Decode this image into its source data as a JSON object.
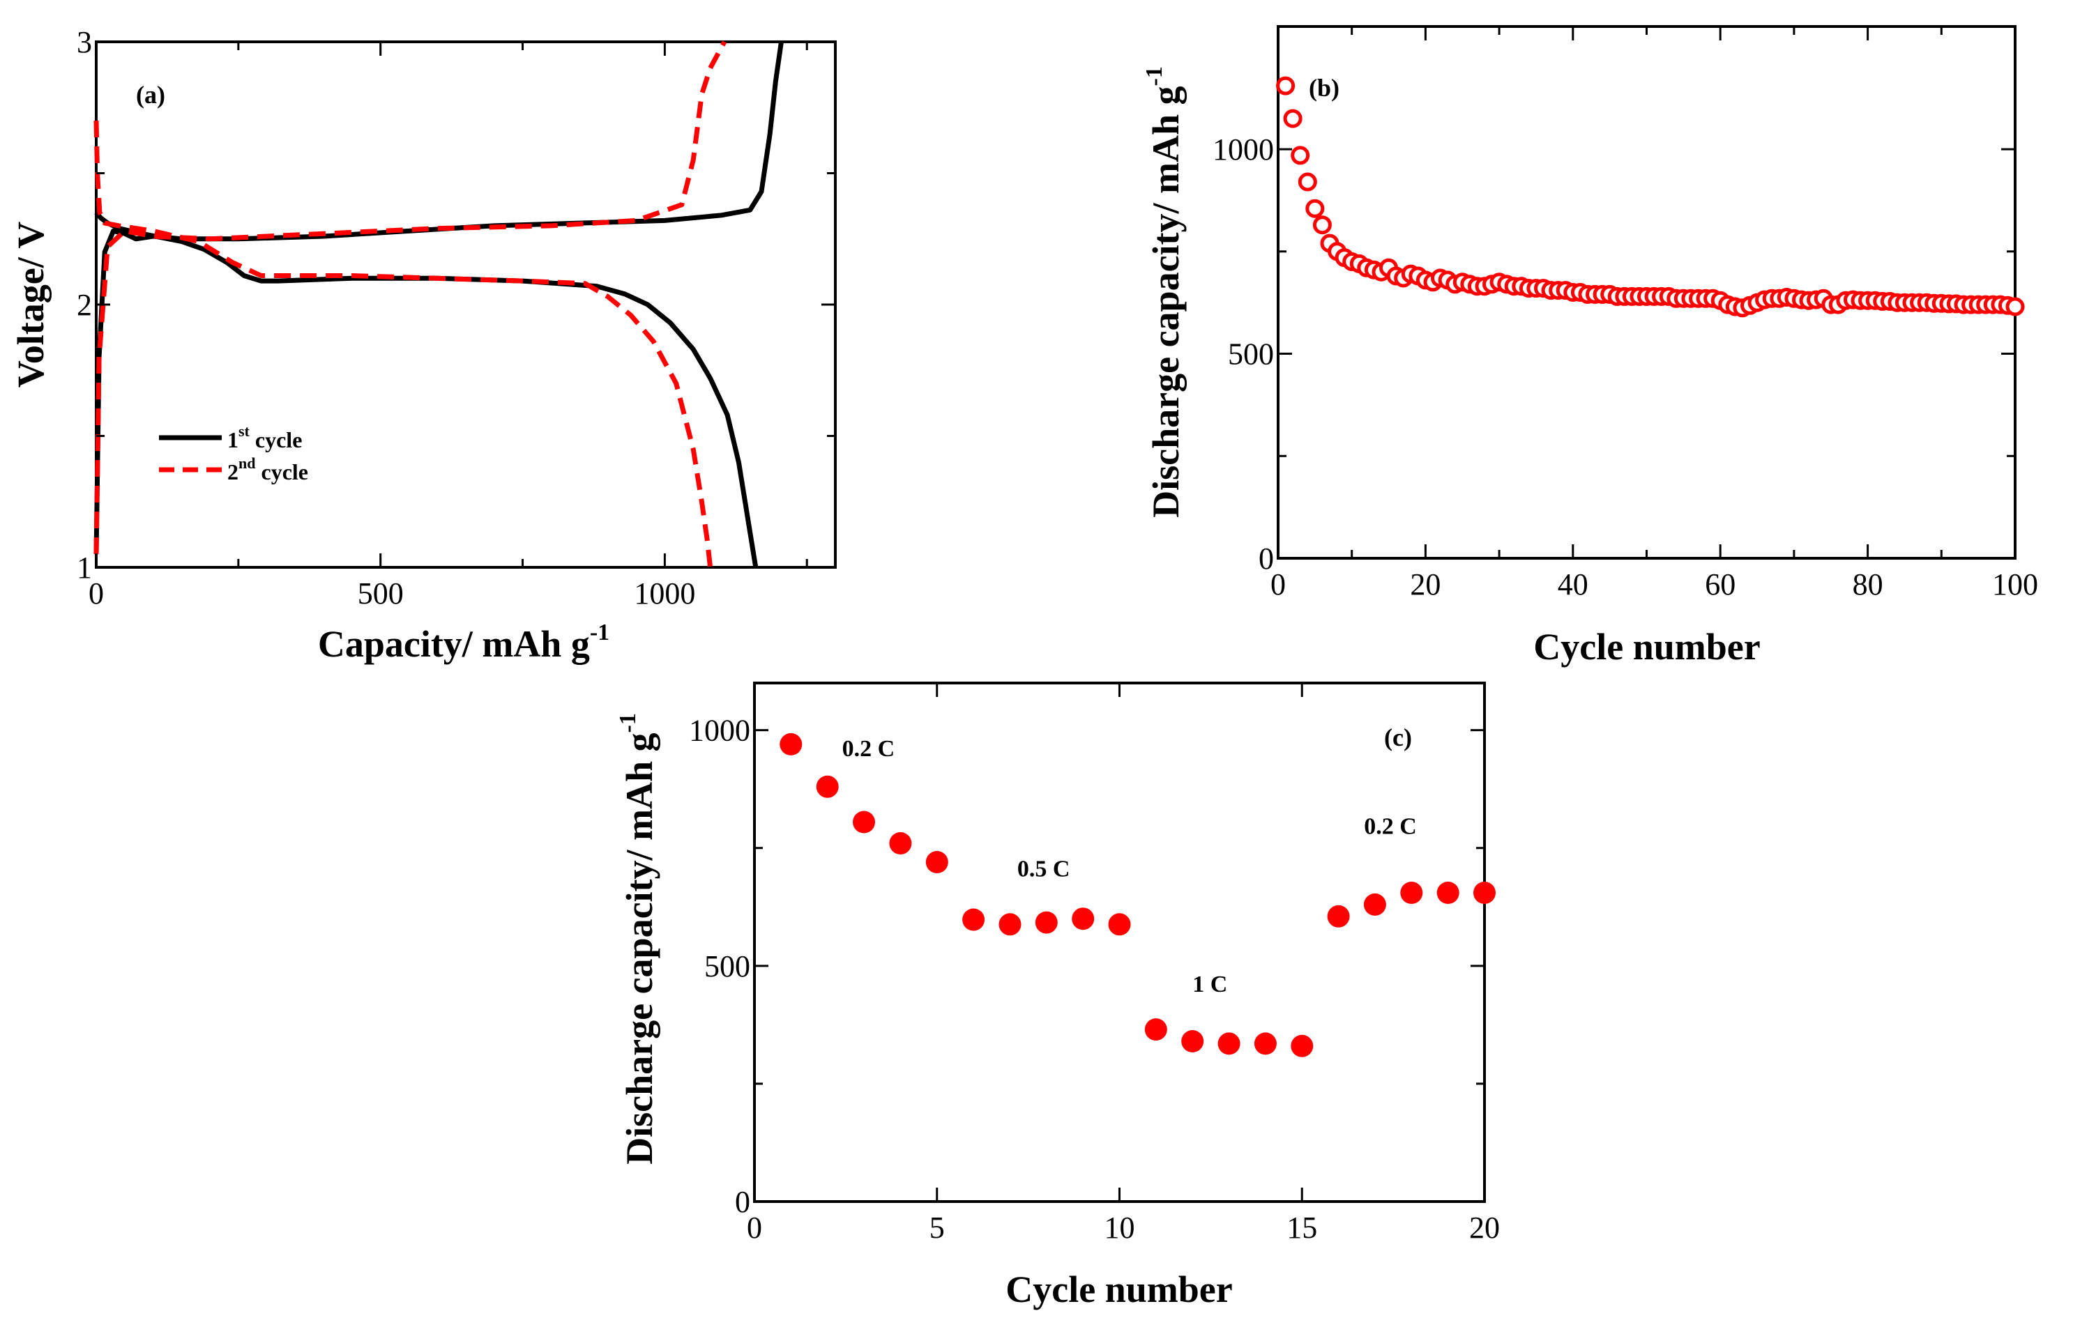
{
  "chart_data": [
    {
      "panel": "(a)",
      "type": "line",
      "xlabel": "Capacity/ mAh g",
      "xlabel_sup": "-1",
      "ylabel": "Voltage/ V",
      "xlim": [
        0,
        1300
      ],
      "ylim": [
        1,
        3
      ],
      "xticks": [
        0,
        500,
        1000
      ],
      "yticks": [
        1,
        2,
        3
      ],
      "legend": [
        {
          "name": "1",
          "sup": "st",
          "suffix": " cycle",
          "color": "#000000",
          "dash": "solid"
        },
        {
          "name": "2",
          "sup": "nd",
          "suffix": " cycle",
          "color": "#ff0000",
          "dash": "dashed"
        }
      ],
      "series": [
        {
          "name": "1st cycle discharge",
          "color": "#000000",
          "dash": "solid",
          "x": [
            0,
            8,
            20,
            40,
            80,
            150,
            190,
            230,
            260,
            290,
            320,
            450,
            600,
            750,
            880,
            930,
            970,
            1010,
            1050,
            1080,
            1110,
            1130,
            1145,
            1160
          ],
          "y": [
            2.35,
            2.33,
            2.31,
            2.29,
            2.27,
            2.24,
            2.21,
            2.16,
            2.11,
            2.09,
            2.09,
            2.1,
            2.1,
            2.09,
            2.07,
            2.04,
            2.0,
            1.93,
            1.83,
            1.72,
            1.58,
            1.4,
            1.2,
            1.0
          ]
        },
        {
          "name": "1st cycle charge",
          "color": "#000000",
          "dash": "solid",
          "x": [
            0,
            5,
            15,
            30,
            50,
            70,
            100,
            150,
            250,
            400,
            550,
            700,
            850,
            1000,
            1100,
            1150,
            1170,
            1185,
            1195,
            1205
          ],
          "y": [
            1.05,
            1.8,
            2.2,
            2.28,
            2.27,
            2.25,
            2.26,
            2.25,
            2.25,
            2.26,
            2.28,
            2.3,
            2.31,
            2.32,
            2.34,
            2.36,
            2.43,
            2.65,
            2.85,
            3.0
          ]
        },
        {
          "name": "2nd cycle discharge",
          "color": "#ff0000",
          "dash": "dashed",
          "x": [
            0,
            2,
            6,
            15,
            40,
            100,
            180,
            240,
            290,
            330,
            450,
            600,
            750,
            860,
            900,
            940,
            980,
            1020,
            1050,
            1065,
            1075,
            1080
          ],
          "y": [
            2.7,
            2.5,
            2.35,
            2.31,
            2.3,
            2.28,
            2.24,
            2.16,
            2.11,
            2.11,
            2.11,
            2.1,
            2.09,
            2.08,
            2.03,
            1.96,
            1.86,
            1.7,
            1.45,
            1.25,
            1.1,
            1.0
          ]
        },
        {
          "name": "2nd cycle charge",
          "color": "#ff0000",
          "dash": "dashed",
          "x": [
            0,
            5,
            20,
            50,
            100,
            200,
            400,
            600,
            800,
            950,
            1030,
            1050,
            1065,
            1080,
            1095,
            1105
          ],
          "y": [
            1.05,
            1.8,
            2.22,
            2.28,
            2.26,
            2.25,
            2.27,
            2.29,
            2.3,
            2.32,
            2.38,
            2.55,
            2.8,
            2.9,
            2.96,
            3.0
          ]
        }
      ]
    },
    {
      "panel": "(b)",
      "type": "scatter",
      "marker": "open-circle",
      "color": "#ff0000",
      "xlabel": "Cycle number",
      "ylabel": "Discharge capacity/ mAh g",
      "ylabel_sup": "-1",
      "xlim": [
        0,
        100
      ],
      "ylim": [
        0,
        1300
      ],
      "xticks": [
        0,
        20,
        40,
        60,
        80,
        100
      ],
      "yticks": [
        0,
        500,
        1000
      ],
      "x": [
        1,
        2,
        3,
        4,
        5,
        6,
        7,
        8,
        9,
        10,
        11,
        12,
        13,
        14,
        15,
        16,
        17,
        18,
        19,
        20,
        21,
        22,
        23,
        24,
        25,
        26,
        27,
        28,
        29,
        30,
        31,
        32,
        33,
        34,
        35,
        36,
        37,
        38,
        39,
        40,
        41,
        42,
        43,
        44,
        45,
        46,
        47,
        48,
        49,
        50,
        51,
        52,
        53,
        54,
        55,
        56,
        57,
        58,
        59,
        60,
        61,
        62,
        63,
        64,
        65,
        66,
        67,
        68,
        69,
        70,
        71,
        72,
        73,
        74,
        75,
        76,
        77,
        78,
        79,
        80,
        81,
        82,
        83,
        84,
        85,
        86,
        87,
        88,
        89,
        90,
        91,
        92,
        93,
        94,
        95,
        96,
        97,
        98,
        99,
        100
      ],
      "y": [
        1155,
        1075,
        985,
        920,
        855,
        815,
        770,
        750,
        735,
        725,
        720,
        710,
        705,
        700,
        710,
        690,
        685,
        695,
        690,
        680,
        675,
        685,
        680,
        670,
        675,
        670,
        665,
        665,
        670,
        675,
        670,
        665,
        665,
        660,
        660,
        660,
        655,
        655,
        655,
        650,
        650,
        645,
        645,
        645,
        645,
        640,
        640,
        640,
        640,
        640,
        640,
        640,
        640,
        635,
        635,
        635,
        635,
        635,
        635,
        630,
        620,
        615,
        612,
        618,
        625,
        632,
        635,
        635,
        638,
        635,
        632,
        630,
        632,
        635,
        620,
        620,
        630,
        632,
        630,
        630,
        630,
        628,
        628,
        625,
        625,
        625,
        625,
        625,
        623,
        623,
        622,
        622,
        620,
        620,
        620,
        620,
        620,
        620,
        618,
        615
      ]
    },
    {
      "panel": "(c)",
      "type": "scatter",
      "marker": "filled-circle",
      "color": "#ff0000",
      "xlabel": "Cycle number",
      "ylabel": "Discharge capacity/ mAh g",
      "ylabel_sup": "-1",
      "xlim": [
        0,
        20
      ],
      "ylim": [
        0,
        1100
      ],
      "xticks": [
        0,
        5,
        10,
        15,
        20
      ],
      "yticks": [
        0,
        500,
        1000
      ],
      "x": [
        1,
        2,
        3,
        4,
        5,
        6,
        7,
        8,
        9,
        10,
        11,
        12,
        13,
        14,
        15,
        16,
        17,
        18,
        19,
        20
      ],
      "y": [
        970,
        880,
        805,
        760,
        720,
        598,
        588,
        592,
        600,
        588,
        365,
        340,
        335,
        335,
        330,
        605,
        630,
        655,
        655,
        655
      ],
      "annotations": [
        {
          "text": "0.2 C",
          "x": 2.4,
          "y": 945
        },
        {
          "text": "0.5 C",
          "x": 7.2,
          "y": 690
        },
        {
          "text": "1 C",
          "x": 12.0,
          "y": 445
        },
        {
          "text": "0.2 C",
          "x": 16.7,
          "y": 780
        }
      ]
    }
  ]
}
